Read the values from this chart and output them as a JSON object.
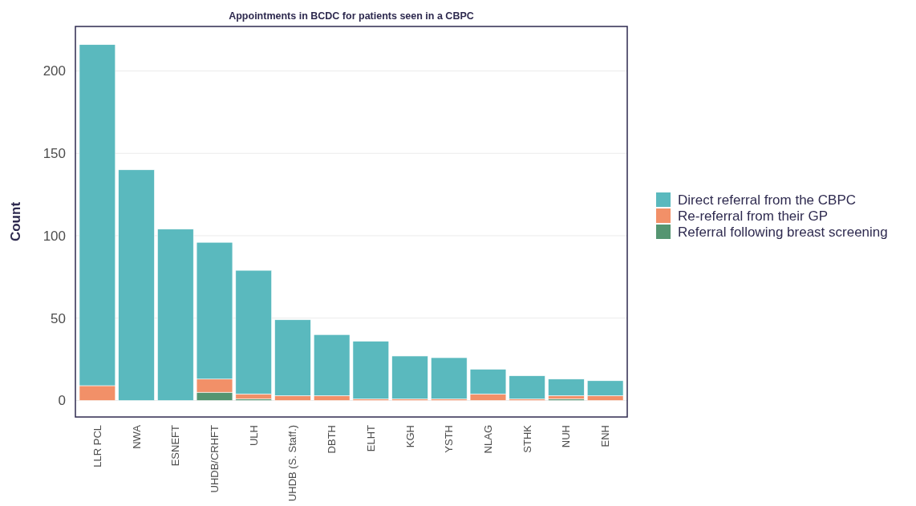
{
  "chart_data": {
    "type": "bar",
    "title": "Appointments in BCDC for patients seen in a CBPC",
    "ylabel": "Count",
    "categories": [
      "LLR PCL",
      "NWA",
      "ESNEFT",
      "UHDB/CRHFT",
      "ULH",
      "UHDB (S. Staff.)",
      "DBTH",
      "ELHT",
      "KGH",
      "YSTH",
      "NLAG",
      "STHK",
      "NUH",
      "ENH"
    ],
    "stacked": true,
    "series": [
      {
        "name": "Referral following breast screening",
        "color": "#559571",
        "values": [
          0,
          0,
          0,
          5,
          1,
          0,
          0,
          0,
          0,
          0,
          0,
          0,
          1,
          0
        ]
      },
      {
        "name": "Re-referral from their GP",
        "color": "#f29068",
        "values": [
          9,
          0,
          0,
          8,
          3,
          3,
          3,
          1,
          1,
          1,
          4,
          1,
          2,
          3
        ]
      },
      {
        "name": "Direct referral from the CBPC",
        "color": "#5ab9be",
        "values": [
          207,
          140,
          104,
          83,
          75,
          46,
          37,
          35,
          26,
          25,
          15,
          14,
          10,
          9
        ]
      }
    ],
    "ylim": [
      -10,
      227
    ],
    "yticks": [
      0,
      50,
      100,
      150,
      200
    ],
    "grid": "y",
    "legend": "right"
  }
}
